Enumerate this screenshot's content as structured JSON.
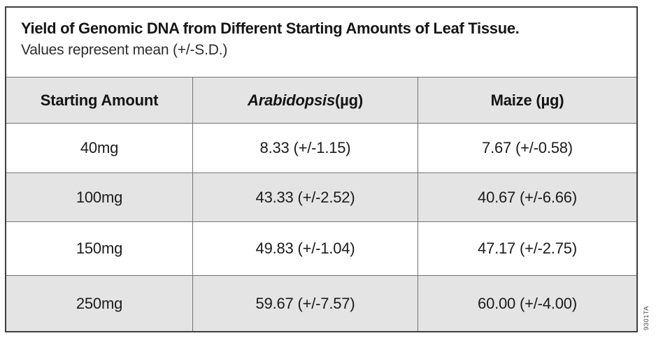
{
  "figure": {
    "title": "Yield of Genomic DNA from Different Starting Amounts of Leaf Tissue.",
    "subtitle": "Values represent mean (+/-S.D.)",
    "table": {
      "header": {
        "starting_amount": "Starting Amount",
        "arabidopsis_name": "Arabidopsis",
        "arabidopsis_unit": " (µg)",
        "maize": "Maize (µg)"
      },
      "rows": [
        {
          "starting_amount": "40mg",
          "arabidopsis": "8.33 (+/-1.15)",
          "maize": "7.67 (+/-0.58)"
        },
        {
          "starting_amount": "100mg",
          "arabidopsis": "43.33 (+/-2.52)",
          "maize": "40.67 (+/-6.66)"
        },
        {
          "starting_amount": "150mg",
          "arabidopsis": "49.83 (+/-1.04)",
          "maize": "47.17 (+/-2.75)"
        },
        {
          "starting_amount": "250mg",
          "arabidopsis": "59.67 (+/-7.57)",
          "maize": "60.00 (+/-4.00)"
        }
      ]
    },
    "artwork_number": "9301TA",
    "colors": {
      "shaded_row": "#e4e4e4",
      "grid_line": "#737373",
      "outer_border": "#3f3f3f",
      "text": "#1b1b1b"
    }
  },
  "chart_data": {
    "type": "table",
    "title": "Yield of Genomic DNA from Different Starting Amounts of Leaf Tissue.",
    "subtitle": "Values represent mean (+/-S.D.)",
    "columns": [
      "Starting Amount",
      "Arabidopsis (µg)",
      "Maize (µg)"
    ],
    "categories": [
      "40mg",
      "100mg",
      "150mg",
      "250mg"
    ],
    "series": [
      {
        "name": "Arabidopsis (µg)",
        "means": [
          8.33,
          43.33,
          49.83,
          59.67
        ],
        "sd": [
          1.15,
          2.52,
          1.04,
          7.57
        ]
      },
      {
        "name": "Maize (µg)",
        "means": [
          7.67,
          40.67,
          47.17,
          60.0
        ],
        "sd": [
          0.58,
          6.66,
          2.75,
          4.0
        ]
      }
    ],
    "layout": {
      "shading": "alternating-rows",
      "grid": true,
      "legend_position": "none"
    }
  }
}
